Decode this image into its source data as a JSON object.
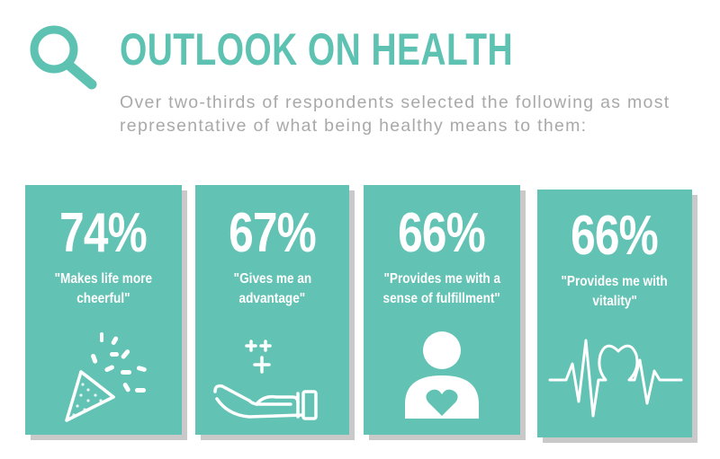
{
  "header": {
    "icon": "magnifier-icon",
    "title": "OUTLOOK ON HEALTH",
    "subtitle": "Over two-thirds of respondents selected the following as most representative of what being healthy means to them:"
  },
  "colors": {
    "accent": "#5dc2b2",
    "card": "#62c2b4",
    "shadow": "#c9c9c9",
    "subtitle": "#a9a9a9"
  },
  "cards": [
    {
      "percent": "74%",
      "quote_line1": "\"Makes life more",
      "quote_line2": "cheerful\"",
      "icon": "party-popper-icon"
    },
    {
      "percent": "67%",
      "quote_line1": "\"Gives me an",
      "quote_line2": "advantage\"",
      "icon": "hand-plus-icon"
    },
    {
      "percent": "66%",
      "quote_line1": "\"Provides me with a",
      "quote_line2": "sense of fulfillment\"",
      "icon": "person-heart-icon"
    },
    {
      "percent": "66%",
      "quote_line1": "\"Provides me with",
      "quote_line2": "vitality\"",
      "icon": "heartbeat-icon"
    }
  ]
}
